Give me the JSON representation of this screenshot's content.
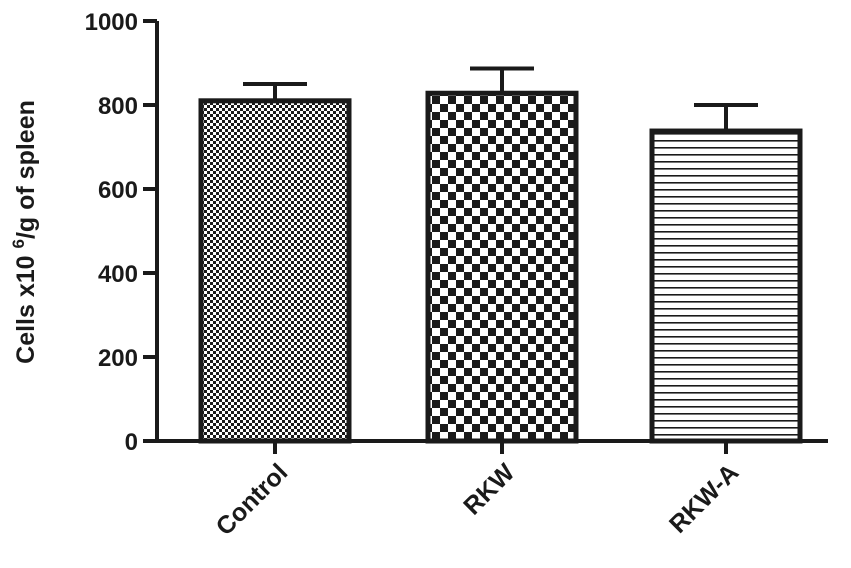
{
  "chart_data": {
    "type": "bar",
    "title": "",
    "xlabel": "",
    "ylabel": "Cells x10 6/g of spleen",
    "ylabel_parts": {
      "before": "Cells x10 ",
      "superscript": "6",
      "after": "/g of spleen"
    },
    "categories": [
      "Control",
      "RKW",
      "RKW-A"
    ],
    "values": [
      810,
      828,
      738
    ],
    "error_upper": [
      850,
      887,
      800
    ],
    "ylim": [
      0,
      1000
    ],
    "yticks": [
      0,
      200,
      400,
      600,
      800,
      1000
    ],
    "grid": false,
    "legend": "none",
    "bar_patterns": [
      "fine-checker",
      "coarse-checker",
      "horizontal-stripes"
    ],
    "colors": {
      "ink": "#1a1a1a",
      "background": "#ffffff"
    }
  }
}
